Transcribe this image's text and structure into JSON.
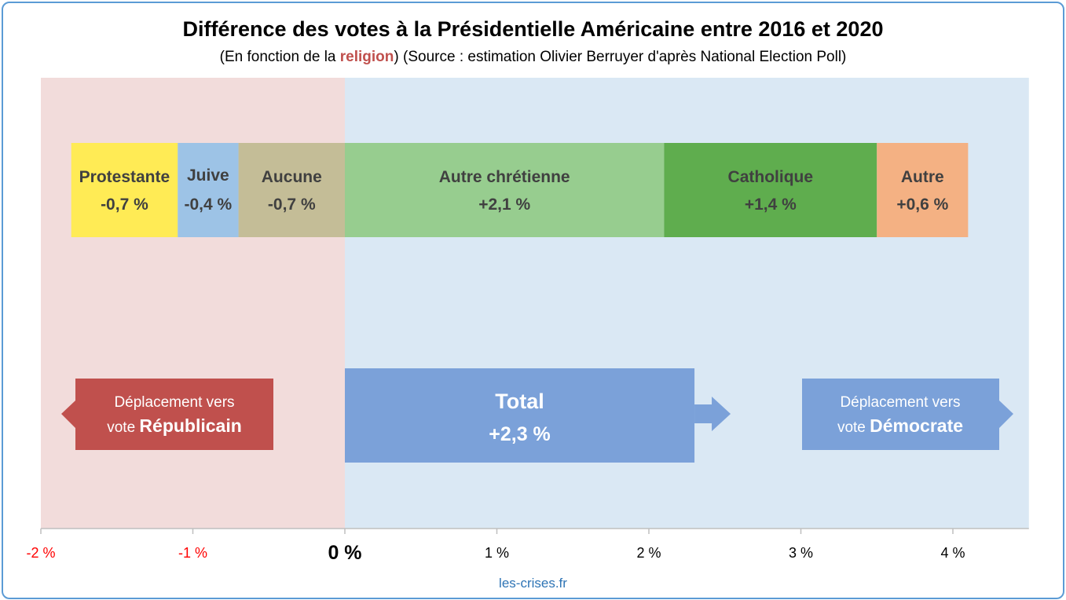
{
  "title": "Différence des votes à la Présidentielle Américaine entre 2016 et 2020",
  "subtitle": {
    "before": "(En fonction de la ",
    "highlight": "religion",
    "after": ") (Source : estimation Olivier Berruyer d'après National Election Poll)"
  },
  "source": "les-crises.fr",
  "colors": {
    "republican_zone": "#f2dcdb",
    "democrat_zone": "#dae8f4",
    "republican_box": "#c0504d",
    "democrat_box": "#7ba1d9",
    "total_box": "#7ba1d9",
    "negative_tick": "#ff0000"
  },
  "chart_data": {
    "type": "bar",
    "orientation": "horizontal stacked waterfall",
    "xlim": [
      -2,
      4.5
    ],
    "x_ticks": [
      {
        "value": -2,
        "label": "-2 %"
      },
      {
        "value": -1,
        "label": "-1 %"
      },
      {
        "value": 0,
        "label": "0 %"
      },
      {
        "value": 1,
        "label": "1 %"
      },
      {
        "value": 2,
        "label": "2 %"
      },
      {
        "value": 3,
        "label": "3 %"
      },
      {
        "value": 4,
        "label": "4 %"
      }
    ],
    "segments": [
      {
        "name": "Aucune",
        "label": "-0,7 %",
        "value": -0.7,
        "color": "#c4bd97"
      },
      {
        "name": "Juive",
        "label": "-0,4 %",
        "value": -0.4,
        "color": "#9dc3e6"
      },
      {
        "name": "Protestante",
        "label": "-0,7 %",
        "value": -0.7,
        "color": "#ffeb55"
      },
      {
        "name": "Autre chrétienne",
        "label": "+2,1 %",
        "value": 2.1,
        "color": "#97cd8f"
      },
      {
        "name": "Catholique",
        "label": "+1,4 %",
        "value": 1.4,
        "color": "#5fad4e"
      },
      {
        "name": "Autre",
        "label": "+0,6 %",
        "value": 0.6,
        "color": "#f4b183"
      }
    ],
    "total": {
      "name": "Total",
      "label": "+2,3 %",
      "value": 2.3
    },
    "annotations": {
      "republican": {
        "prefix": "Déplacement vers",
        "line2": "vote ",
        "bold": "Républicain"
      },
      "democrat": {
        "prefix": "Déplacement vers",
        "line2": "vote ",
        "bold": "Démocrate"
      }
    },
    "grid": false,
    "legend": "none"
  }
}
